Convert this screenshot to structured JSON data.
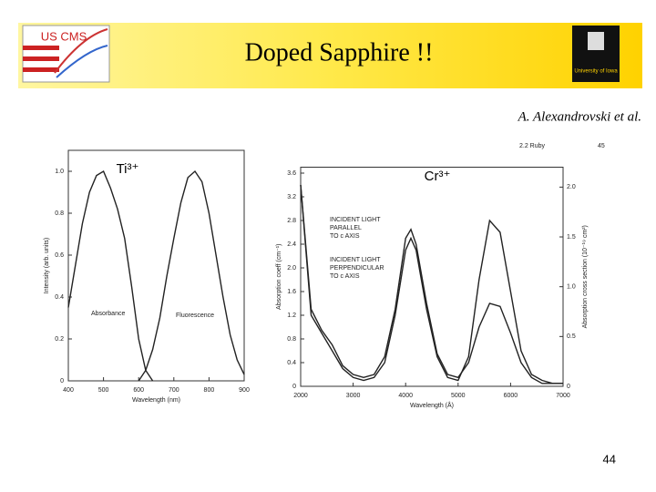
{
  "slide": {
    "title": "Doped Sapphire !!",
    "citation": "A. Alexandrovski et al.",
    "page_number": "44",
    "logo_left": "US CMS",
    "logo_right": "University of Iowa"
  },
  "chart_data": [
    {
      "type": "line",
      "title": "Ti³⁺",
      "x_label": "Wavelength (nm)",
      "y_label": "Intensity (arb. units)",
      "xlim": [
        400,
        900
      ],
      "xticks": [
        400,
        500,
        600,
        700,
        800,
        900
      ],
      "ylim": [
        0,
        1.1
      ],
      "yticks": [
        0,
        0.2,
        0.4,
        0.6,
        0.8,
        {
          "value": 1,
          "label": "1.0"
        }
      ],
      "annotations": [
        "Absorbance",
        "Fluorescence"
      ],
      "series": [
        {
          "color": "#222222",
          "x": [
            400,
            420,
            440,
            460,
            480,
            500,
            520,
            540,
            560,
            580,
            600,
            620,
            640
          ],
          "values": [
            0.35,
            0.55,
            0.75,
            0.9,
            0.98,
            1.0,
            0.92,
            0.82,
            0.68,
            0.45,
            0.2,
            0.05,
            0.0
          ]
        },
        {
          "color": "#222222",
          "x": [
            600,
            620,
            640,
            660,
            680,
            700,
            720,
            740,
            760,
            780,
            800,
            820,
            840,
            860,
            880,
            900
          ],
          "values": [
            0,
            0.05,
            0.15,
            0.3,
            0.5,
            0.68,
            0.85,
            0.97,
            1.0,
            0.95,
            0.8,
            0.6,
            0.4,
            0.22,
            0.1,
            0.03
          ]
        }
      ]
    },
    {
      "type": "line",
      "title": "Cr³⁺",
      "x_label": "Wavelength (Å)",
      "y_label": "Absorption coeff (cm⁻¹)",
      "y2_label": "Absorption cross section (10⁻¹⁹ cm²)",
      "xlim": [
        2000,
        7000
      ],
      "xticks": [
        2000,
        3000,
        4000,
        5000,
        6000,
        7000
      ],
      "ylim": [
        0,
        3.7
      ],
      "yticks": [
        0,
        0.4,
        0.8,
        1.2,
        1.6,
        {
          "value": 2,
          "label": "2.0"
        },
        2.4,
        2.8,
        3.2,
        3.6
      ],
      "y2lim": [
        0,
        2.2
      ],
      "y2ticks": [
        0,
        0.5,
        {
          "value": 1,
          "label": "1.0"
        },
        1.5,
        {
          "value": 2,
          "label": "2.0"
        }
      ],
      "annotations": [
        "INCIDENT LIGHT",
        "PARALLEL",
        "TO c AXIS",
        "INCIDENT LIGHT",
        "PERPENDICULAR",
        "TO c AXIS",
        "2.2 Ruby",
        "45"
      ],
      "series": [
        {
          "color": "#222222",
          "x": [
            2000,
            2200,
            2400,
            2600,
            2800,
            3000,
            3200,
            3400,
            3600,
            3800,
            4000,
            4100,
            4200,
            4400,
            4600,
            4800,
            5000,
            5200,
            5400,
            5600,
            5800,
            6000,
            6200,
            6400,
            6600,
            6800,
            7000
          ],
          "values": [
            3.4,
            1.2,
            0.9,
            0.6,
            0.3,
            0.15,
            0.1,
            0.15,
            0.4,
            1.2,
            2.3,
            2.5,
            2.3,
            1.3,
            0.5,
            0.15,
            0.1,
            0.5,
            1.8,
            2.8,
            2.6,
            1.6,
            0.6,
            0.2,
            0.1,
            0.05,
            0.05
          ]
        },
        {
          "color": "#222222",
          "x": [
            2000,
            2200,
            2400,
            2600,
            2800,
            3000,
            3200,
            3400,
            3600,
            3800,
            4000,
            4100,
            4200,
            4400,
            4600,
            4800,
            5000,
            5200,
            5400,
            5600,
            5800,
            6000,
            6200,
            6400,
            6600,
            6800,
            7000
          ],
          "values": [
            3.4,
            1.3,
            0.95,
            0.7,
            0.35,
            0.2,
            0.15,
            0.2,
            0.5,
            1.3,
            2.5,
            2.65,
            2.4,
            1.4,
            0.55,
            0.2,
            0.15,
            0.4,
            1.0,
            1.4,
            1.35,
            0.9,
            0.4,
            0.15,
            0.05,
            0.05,
            0.05
          ]
        }
      ]
    }
  ]
}
